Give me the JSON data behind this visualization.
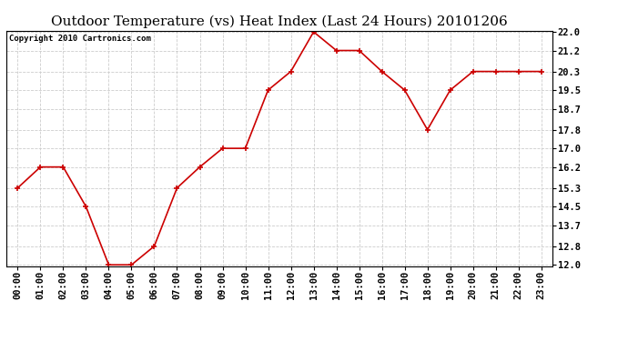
{
  "title": "Outdoor Temperature (vs) Heat Index (Last 24 Hours) 20101206",
  "copyright": "Copyright 2010 Cartronics.com",
  "x_labels": [
    "00:00",
    "01:00",
    "02:00",
    "03:00",
    "04:00",
    "05:00",
    "06:00",
    "07:00",
    "08:00",
    "09:00",
    "10:00",
    "11:00",
    "12:00",
    "13:00",
    "14:00",
    "15:00",
    "16:00",
    "17:00",
    "18:00",
    "19:00",
    "20:00",
    "21:00",
    "22:00",
    "23:00"
  ],
  "y_values": [
    15.3,
    16.2,
    16.2,
    14.5,
    12.0,
    12.0,
    12.8,
    15.3,
    16.2,
    17.0,
    17.0,
    19.5,
    20.3,
    22.0,
    21.2,
    21.2,
    20.3,
    19.5,
    17.8,
    19.5,
    20.3,
    20.3,
    20.3,
    20.3
  ],
  "y_ticks": [
    12.0,
    12.8,
    13.7,
    14.5,
    15.3,
    16.2,
    17.0,
    17.8,
    18.7,
    19.5,
    20.3,
    21.2,
    22.0
  ],
  "y_min": 12.0,
  "y_max": 22.0,
  "line_color": "#cc0000",
  "marker": "+",
  "marker_size": 5,
  "marker_edge_width": 1.2,
  "line_width": 1.2,
  "background_color": "#ffffff",
  "plot_bg_color": "#ffffff",
  "grid_color": "#cccccc",
  "title_fontsize": 11,
  "copyright_fontsize": 6.5,
  "tick_fontsize": 7.5
}
